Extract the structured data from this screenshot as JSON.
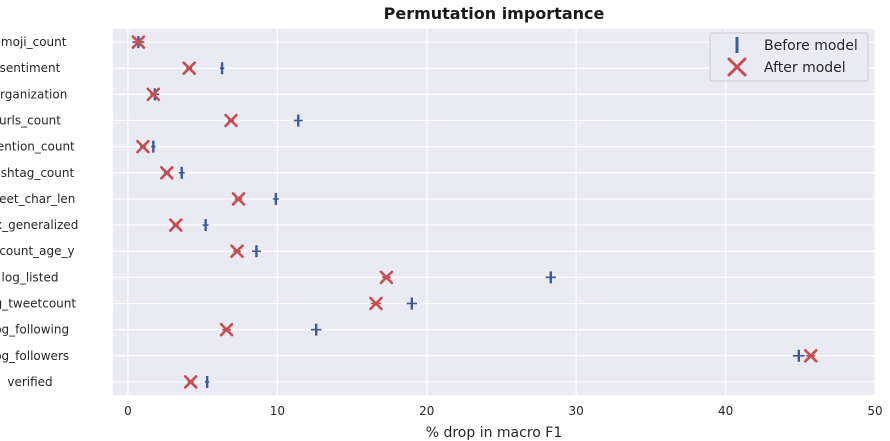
{
  "chart_data": {
    "type": "scatter",
    "title": "Permutation importance",
    "xlabel": "% drop in macro F1",
    "ylabel": "",
    "xlim": [
      -1,
      50
    ],
    "xticks": [
      0,
      10,
      20,
      30,
      40,
      50
    ],
    "grid": true,
    "legend_position": "top-right",
    "categories": [
      "emoji_count",
      "sentiment",
      "organization",
      "urls_count",
      "mention_count",
      "hashtag_count",
      "tweet_char_len",
      "sex_generalized",
      "account_age_y",
      "log_listed",
      "log_tweetcount",
      "log_following",
      "log_followers",
      "verified"
    ],
    "series": [
      {
        "name": "Before model",
        "marker": "line",
        "color": "#3a5a9a",
        "values": [
          0.7,
          6.3,
          1.8,
          11.4,
          1.7,
          3.6,
          9.9,
          5.2,
          8.6,
          28.3,
          19.0,
          12.6,
          44.9,
          5.3
        ],
        "errors": [
          0.4,
          0.15,
          0.3,
          0.3,
          0.15,
          0.2,
          0.2,
          0.2,
          0.3,
          0.35,
          0.35,
          0.35,
          0.4,
          0.15
        ]
      },
      {
        "name": "After model",
        "marker": "x",
        "color": "#c44e52",
        "values": [
          0.7,
          4.1,
          1.7,
          6.9,
          1.0,
          2.6,
          7.4,
          3.2,
          7.3,
          17.3,
          16.6,
          6.6,
          45.7,
          4.2
        ],
        "errors": [
          0.3,
          0.2,
          0.2,
          0.2,
          0.2,
          0.2,
          0.25,
          0.2,
          0.25,
          0.3,
          0.35,
          0.3,
          0.3,
          0.2
        ]
      }
    ]
  }
}
